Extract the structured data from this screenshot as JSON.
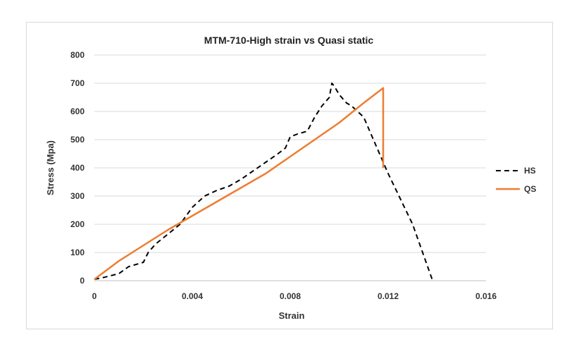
{
  "chart_data": {
    "type": "line",
    "title": "MTM-710-High strain vs Quasi static",
    "xlabel": "Strain",
    "ylabel": "Stress (Mpa)",
    "xlim": [
      0,
      0.016
    ],
    "ylim": [
      0,
      800
    ],
    "xticks": [
      0,
      0.004,
      0.008,
      0.012,
      0.016
    ],
    "xtick_labels": [
      "0",
      "0.004",
      "0.008",
      "0.012",
      "0.016"
    ],
    "yticks": [
      0,
      100,
      200,
      300,
      400,
      500,
      600,
      700,
      800
    ],
    "ytick_labels": [
      "0",
      "100",
      "200",
      "300",
      "400",
      "500",
      "600",
      "700",
      "800"
    ],
    "grid": "horizontal",
    "legend_position": "right",
    "series": [
      {
        "name": "HS",
        "color": "#000000",
        "style": "dashed",
        "x": [
          0,
          0.0004,
          0.001,
          0.0014,
          0.002,
          0.0022,
          0.0025,
          0.003,
          0.0035,
          0.004,
          0.0045,
          0.005,
          0.0055,
          0.006,
          0.0065,
          0.007,
          0.0075,
          0.0078,
          0.008,
          0.0083,
          0.0087,
          0.009,
          0.0093,
          0.0096,
          0.0097,
          0.0098,
          0.01,
          0.0103,
          0.0105,
          0.011,
          0.0115,
          0.012,
          0.013,
          0.0138
        ],
        "y": [
          5,
          12,
          25,
          50,
          65,
          100,
          130,
          165,
          200,
          260,
          300,
          320,
          335,
          360,
          390,
          420,
          450,
          470,
          510,
          520,
          530,
          580,
          620,
          650,
          700,
          690,
          660,
          630,
          620,
          580,
          480,
          380,
          200,
          5
        ]
      },
      {
        "name": "QS",
        "color": "#ed7d31",
        "style": "solid",
        "x": [
          0,
          0.001,
          0.002,
          0.003,
          0.004,
          0.005,
          0.006,
          0.007,
          0.008,
          0.009,
          0.01,
          0.011,
          0.0118,
          0.0118
        ],
        "y": [
          5,
          70,
          125,
          180,
          230,
          280,
          330,
          380,
          440,
          500,
          560,
          630,
          683,
          400
        ]
      }
    ]
  }
}
